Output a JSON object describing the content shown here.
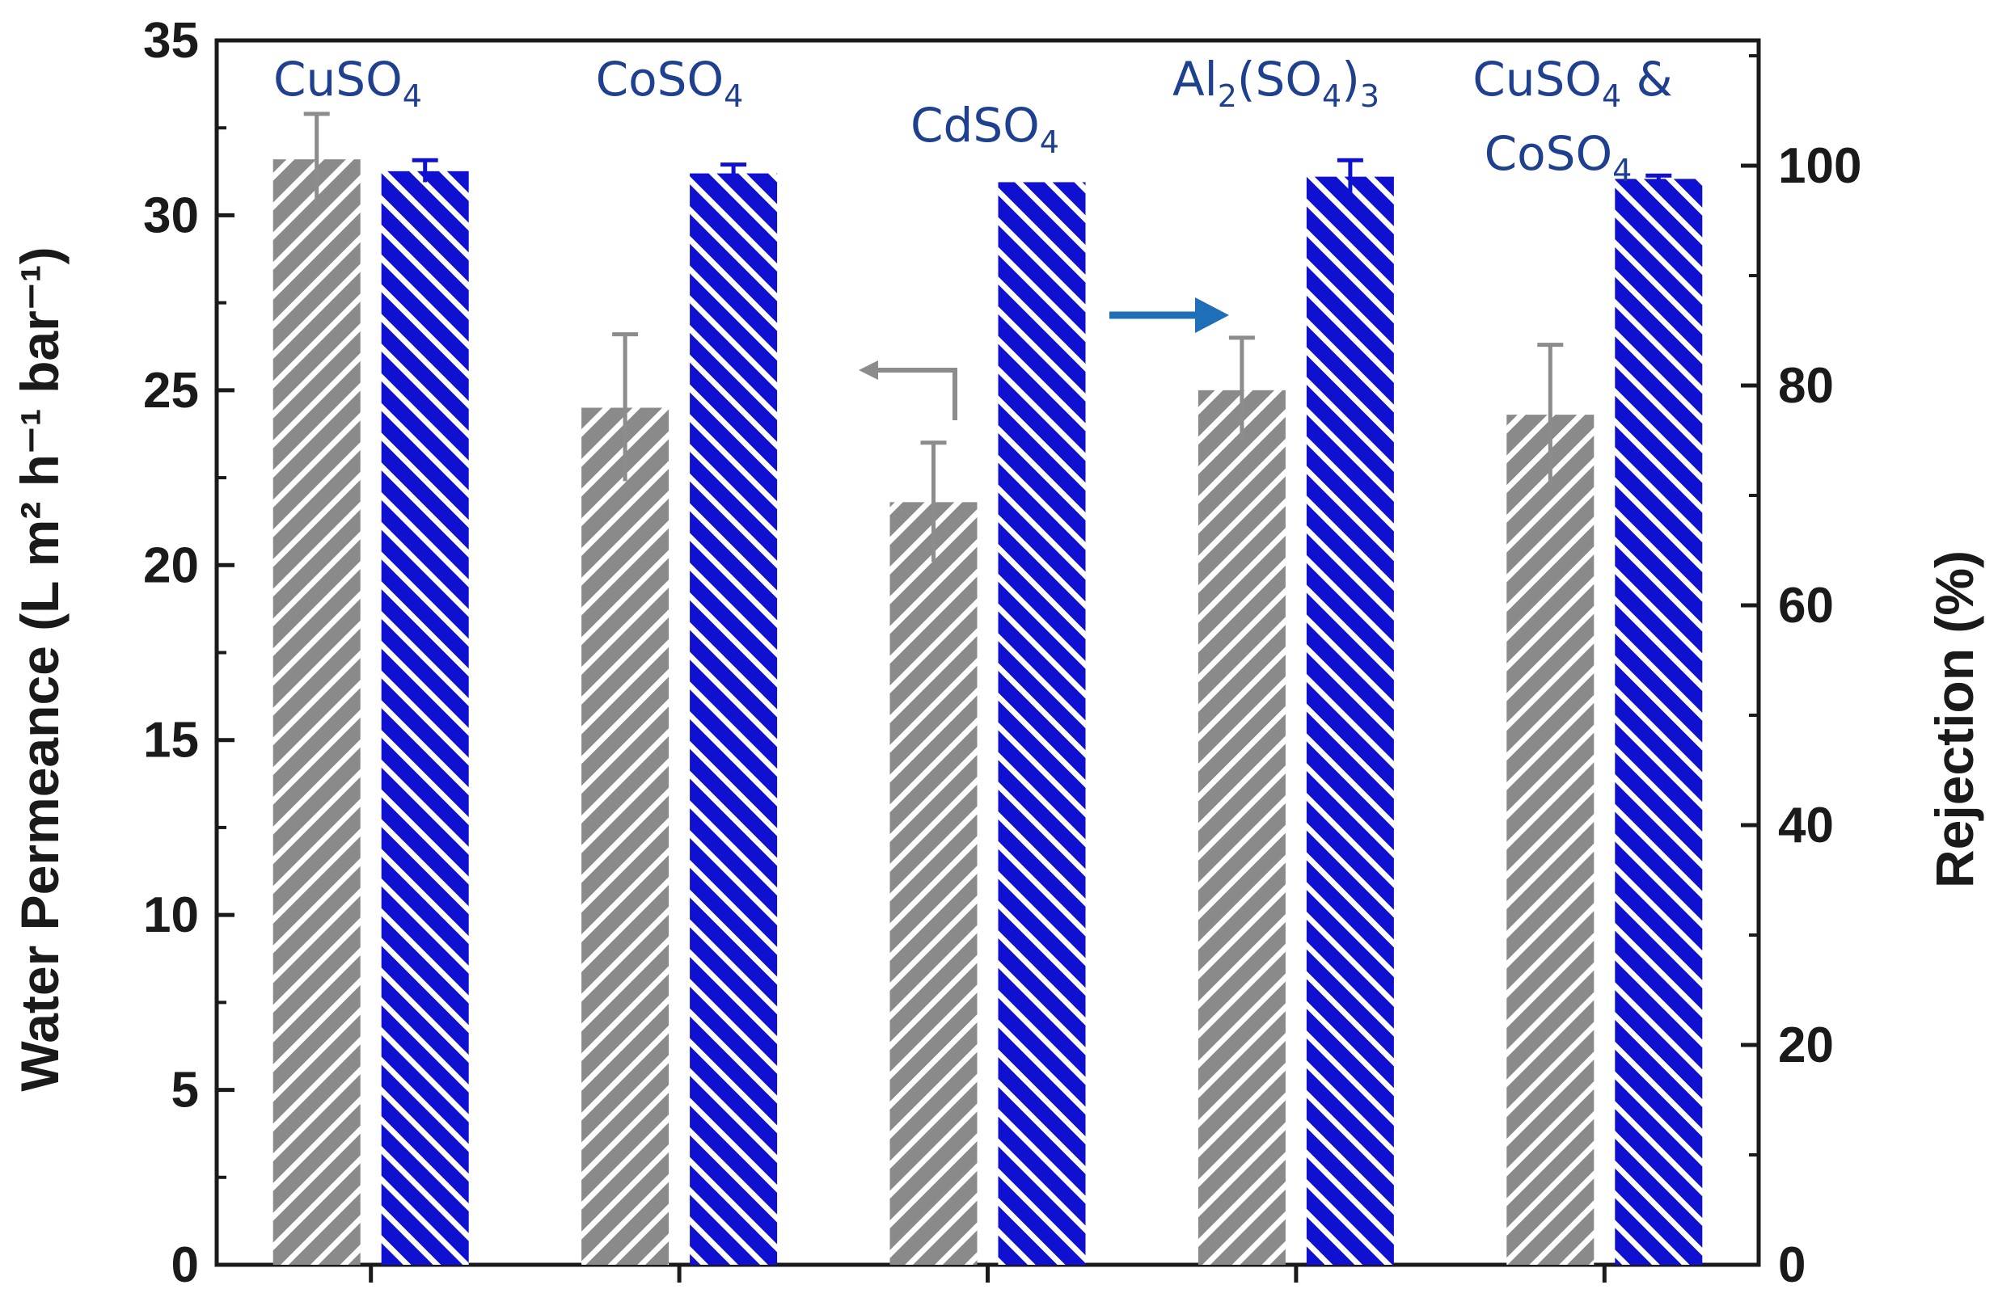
{
  "chart_data": {
    "type": "bar",
    "categories": [
      "CuSO4",
      "CoSO4",
      "CdSO4",
      "Al2(SO4)3",
      "CuSO4 & CoSO4"
    ],
    "category_labels": [
      {
        "parts": [
          {
            "t": "CuSO",
            "sub": false
          },
          {
            "t": "4",
            "sub": true
          }
        ]
      },
      {
        "parts": [
          {
            "t": "CoSO",
            "sub": false
          },
          {
            "t": "4",
            "sub": true
          }
        ]
      },
      {
        "parts": [
          {
            "t": "CdSO",
            "sub": false
          },
          {
            "t": "4",
            "sub": true
          }
        ]
      },
      {
        "parts": [
          {
            "t": "Al",
            "sub": false
          },
          {
            "t": "2",
            "sub": true
          },
          {
            "t": "(SO",
            "sub": false
          },
          {
            "t": "4",
            "sub": true
          },
          {
            "t": ")",
            "sub": false
          },
          {
            "t": "3",
            "sub": true
          }
        ]
      },
      {
        "parts": [
          {
            "t": "CuSO",
            "sub": false
          },
          {
            "t": "4",
            "sub": true
          },
          {
            "t": " &",
            "sub": false
          }
        ],
        "line2": [
          {
            "t": "CoSO",
            "sub": false
          },
          {
            "t": "4",
            "sub": true
          }
        ]
      }
    ],
    "series": [
      {
        "name": "Water Permeance",
        "axis": "left",
        "color": "#8a8a8a",
        "values": [
          31.6,
          24.5,
          21.8,
          25.0,
          24.3
        ],
        "errors": [
          1.3,
          2.1,
          1.7,
          1.5,
          2.0
        ]
      },
      {
        "name": "Rejection",
        "axis": "right",
        "color": "#1010d0",
        "values": [
          99.5,
          99.3,
          98.5,
          99.0,
          98.8
        ],
        "errors": [
          1.0,
          0.8,
          0.0,
          1.5,
          0.3
        ]
      }
    ],
    "ylabel_left": "Water Permeance (L m² h⁻¹ bar⁻¹)",
    "ylabel_right": "Rejection (%)",
    "ylim_left": [
      0,
      35
    ],
    "ylim_right": [
      0,
      111.4
    ],
    "yticks_left": [
      0,
      5,
      10,
      15,
      20,
      25,
      30,
      35
    ],
    "yticks_right": [
      0,
      20,
      40,
      60,
      80,
      100
    ],
    "annotations": [
      "left arrow: grey bars read on left axis",
      "right arrow: blue bars read on right axis"
    ]
  }
}
